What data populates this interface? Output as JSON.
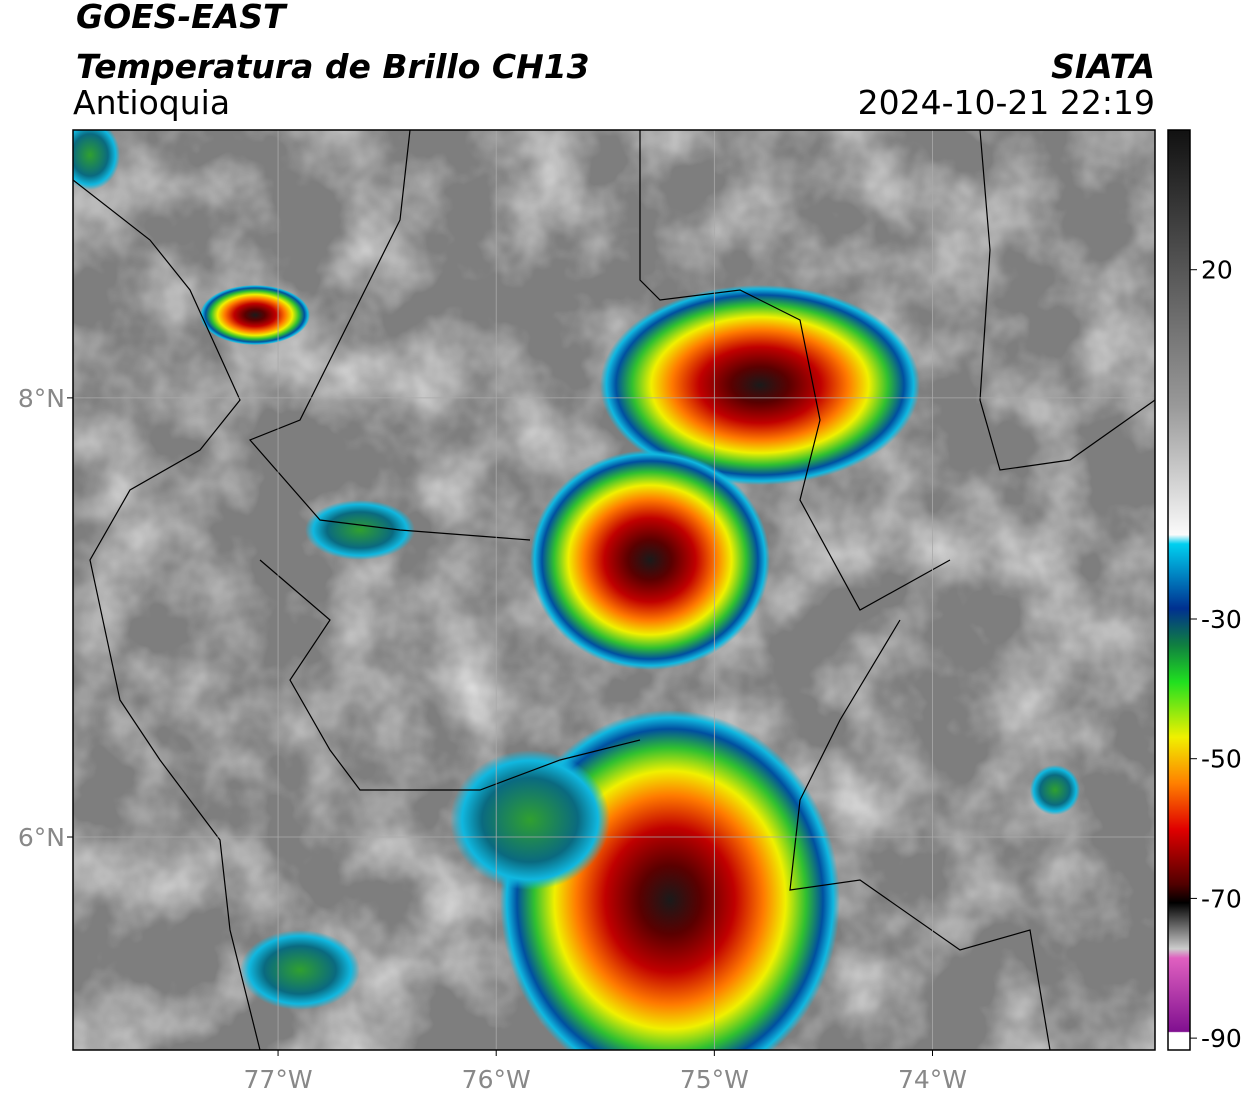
{
  "header": {
    "satellite": "GOES-EAST",
    "product": "Temperatura de Brillo CH13",
    "region": "Antioquia",
    "source": "SIATA",
    "datetime": "2024-10-21 22:19"
  },
  "map": {
    "xlim": [
      -77.94,
      -72.98
    ],
    "ylim": [
      5.03,
      9.22
    ],
    "xticks": [
      {
        "value": -77,
        "label": "77°W"
      },
      {
        "value": -76,
        "label": "76°W"
      },
      {
        "value": -75,
        "label": "75°W"
      },
      {
        "value": -74,
        "label": "74°W"
      }
    ],
    "yticks": [
      {
        "value": 8,
        "label": "8°N"
      },
      {
        "value": 6,
        "label": "6°N"
      }
    ],
    "grid": true
  },
  "colorbar": {
    "lim": [
      -91.7,
      40
    ],
    "ticks": [
      20,
      -30,
      -50,
      -70,
      -90
    ]
  }
}
